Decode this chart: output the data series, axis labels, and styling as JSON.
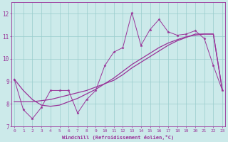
{
  "xlabel": "Windchill (Refroidissement éolien,°C)",
  "background_color": "#cceaea",
  "line_color": "#993399",
  "grid_color": "#99cccc",
  "x_hours": [
    0,
    1,
    2,
    3,
    4,
    5,
    6,
    7,
    8,
    9,
    10,
    11,
    12,
    13,
    14,
    15,
    16,
    17,
    18,
    19,
    20,
    21,
    22,
    23
  ],
  "y_windchill": [
    9.1,
    7.75,
    7.35,
    7.85,
    8.6,
    8.6,
    8.6,
    7.6,
    8.2,
    8.6,
    9.7,
    10.3,
    10.5,
    12.05,
    10.6,
    11.3,
    11.75,
    11.2,
    11.05,
    11.1,
    11.25,
    10.9,
    9.7,
    8.6
  ],
  "y_smooth1": [
    8.1,
    8.1,
    8.1,
    8.15,
    8.2,
    8.3,
    8.4,
    8.5,
    8.6,
    8.75,
    8.9,
    9.05,
    9.3,
    9.6,
    9.85,
    10.1,
    10.35,
    10.6,
    10.8,
    10.95,
    11.1,
    11.1,
    11.1,
    8.6
  ],
  "y_smooth2": [
    9.1,
    8.6,
    8.2,
    7.95,
    7.9,
    7.95,
    8.1,
    8.25,
    8.45,
    8.65,
    8.9,
    9.15,
    9.45,
    9.75,
    10.0,
    10.25,
    10.5,
    10.7,
    10.85,
    10.98,
    11.05,
    11.1,
    11.1,
    8.6
  ],
  "ylim": [
    7.0,
    12.5
  ],
  "yticks": [
    7,
    8,
    9,
    10,
    11,
    12
  ],
  "xticks": [
    0,
    1,
    2,
    3,
    4,
    5,
    6,
    7,
    8,
    9,
    10,
    11,
    12,
    13,
    14,
    15,
    16,
    17,
    18,
    19,
    20,
    21,
    22,
    23
  ]
}
